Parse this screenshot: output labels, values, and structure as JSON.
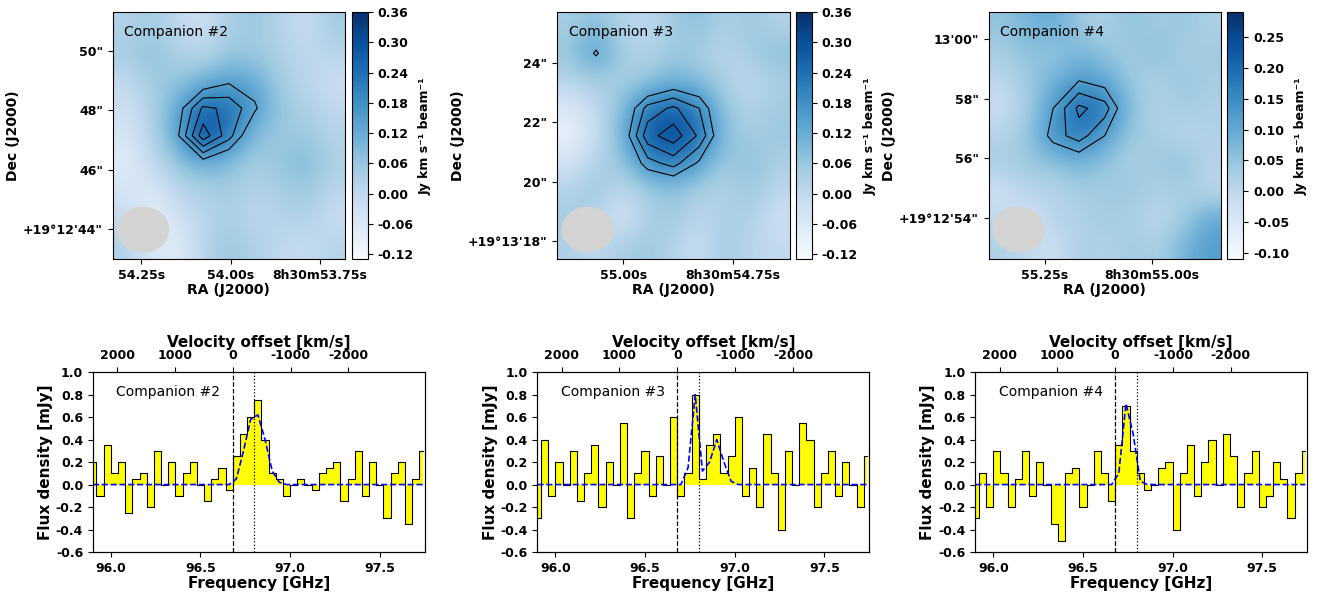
{
  "chart_data": [
    {
      "type": "heatmap",
      "label": "Companion #2",
      "x_label": "RA (J2000)",
      "y_label": "Dec (J2000)",
      "xlim": [
        54.33,
        53.68
      ],
      "ylim": [
        43.0,
        51.3
      ],
      "xticks": [
        {
          "value": 54.25,
          "label": "54.25s"
        },
        {
          "value": 54.0,
          "label": "54.00s"
        },
        {
          "value": 53.75,
          "label": "8h30m53.75s"
        }
      ],
      "yticks": [
        {
          "value": 44,
          "label": "+19°12'44\""
        },
        {
          "value": 46,
          "label": "46\""
        },
        {
          "value": 48,
          "label": "48\""
        },
        {
          "value": 50,
          "label": "50\""
        }
      ],
      "color": "Blues",
      "colorbar_label": "Jy km s⁻¹ beam⁻¹",
      "colorbar_range": [
        -0.13,
        0.36
      ],
      "colorbar_ticks": [
        -0.12,
        -0.06,
        {
          "value": 0.0,
          "label": "0.00"
        },
        0.06,
        0.12,
        0.18,
        0.24,
        {
          "value": 0.3,
          "label": "0.30"
        },
        0.36
      ],
      "contour_levels": [
        0.15,
        0.2,
        0.25,
        0.3
      ],
      "cells": [
        [
          0.02,
          0.05,
          0.0,
          -0.03,
          0.04,
          0.06,
          0.02,
          -0.02,
          0.05
        ],
        [
          0.04,
          0.08,
          0.03,
          0.01,
          0.06,
          0.05,
          0.03,
          0.0,
          0.02
        ],
        [
          0.0,
          0.05,
          0.06,
          0.1,
          0.14,
          0.12,
          0.04,
          0.01,
          -0.02
        ],
        [
          -0.03,
          0.03,
          0.12,
          0.26,
          0.24,
          0.16,
          0.06,
          0.03,
          0.0
        ],
        [
          -0.05,
          0.02,
          0.14,
          0.33,
          0.22,
          0.08,
          0.05,
          0.06,
          0.02
        ],
        [
          -0.08,
          0.0,
          0.06,
          0.12,
          0.08,
          0.04,
          0.07,
          0.09,
          0.03
        ],
        [
          -0.04,
          -0.06,
          0.02,
          0.03,
          0.05,
          0.02,
          0.04,
          0.06,
          0.01
        ],
        [
          0.0,
          -0.1,
          -0.03,
          0.01,
          0.04,
          0.0,
          0.02,
          0.03,
          -0.02
        ],
        [
          0.03,
          -0.05,
          -0.08,
          0.02,
          0.06,
          0.03,
          0.0,
          -0.01,
          0.02
        ]
      ]
    },
    {
      "type": "heatmap",
      "label": "Companion #3",
      "x_label": "RA (J2000)",
      "y_label": "Dec (J2000)",
      "xlim": [
        55.15,
        54.62
      ],
      "ylim": [
        17.4,
        25.7
      ],
      "xticks": [
        {
          "value": 55.0,
          "label": "55.00s"
        },
        {
          "value": 54.75,
          "label": "8h30m54.75s"
        }
      ],
      "yticks": [
        {
          "value": 18,
          "label": "+19°13'18\""
        },
        {
          "value": 20,
          "label": "20\""
        },
        {
          "value": 22,
          "label": "22\""
        },
        {
          "value": 24,
          "label": "24\""
        }
      ],
      "color": "Blues",
      "colorbar_label": "Jy km s⁻¹ beam⁻¹",
      "colorbar_range": [
        -0.13,
        0.36
      ],
      "colorbar_ticks": [
        -0.12,
        -0.06,
        {
          "value": 0.0,
          "label": "0.00"
        },
        0.06,
        0.12,
        0.18,
        0.24,
        {
          "value": 0.3,
          "label": "0.30"
        },
        0.36
      ],
      "contour_levels": [
        0.15,
        0.2,
        0.25,
        0.3
      ],
      "cells": [
        [
          0.04,
          0.08,
          0.02,
          0.0,
          0.05,
          0.08,
          0.03,
          0.06,
          0.02
        ],
        [
          0.06,
          0.16,
          0.05,
          0.02,
          0.06,
          0.04,
          0.01,
          0.05,
          0.08
        ],
        [
          0.02,
          0.05,
          0.03,
          0.06,
          0.1,
          0.08,
          0.03,
          0.0,
          0.04
        ],
        [
          -0.06,
          0.0,
          0.08,
          0.22,
          0.26,
          0.2,
          0.06,
          0.02,
          0.05
        ],
        [
          -0.1,
          -0.02,
          0.1,
          0.28,
          0.33,
          0.24,
          0.08,
          0.04,
          0.06
        ],
        [
          -0.04,
          0.03,
          0.06,
          0.18,
          0.22,
          0.14,
          0.05,
          0.08,
          0.03
        ],
        [
          0.02,
          0.06,
          0.0,
          0.05,
          0.07,
          0.04,
          0.02,
          0.06,
          0.01
        ],
        [
          0.05,
          0.02,
          -0.05,
          0.03,
          0.06,
          0.0,
          0.04,
          0.03,
          -0.03
        ],
        [
          0.03,
          0.0,
          0.04,
          0.06,
          0.02,
          -0.02,
          0.05,
          0.01,
          0.0
        ]
      ]
    },
    {
      "type": "heatmap",
      "label": "Companion #4",
      "x_label": "RA (J2000)",
      "y_label": "Dec (J2000)",
      "xlim": [
        55.38,
        54.84
      ],
      "ylim": [
        52.6,
        60.9
      ],
      "xticks": [
        {
          "value": 55.25,
          "label": "55.25s"
        },
        {
          "value": 55.0,
          "label": "8h30m55.00s"
        }
      ],
      "yticks": [
        {
          "value": 54,
          "label": "+19°12'54\""
        },
        {
          "value": 56,
          "label": "56\""
        },
        {
          "value": 58,
          "label": "58\""
        },
        {
          "value": 60,
          "label": "13'00\""
        }
      ],
      "color": "Blues",
      "colorbar_label": "Jy km s⁻¹ beam⁻¹",
      "colorbar_range": [
        -0.11,
        0.29
      ],
      "colorbar_ticks": [
        {
          "value": -0.1,
          "label": "-0.10"
        },
        -0.05,
        {
          "value": 0.0,
          "label": "0.00"
        },
        0.05,
        {
          "value": 0.1,
          "label": "0.10"
        },
        0.15,
        {
          "value": 0.2,
          "label": "0.20"
        },
        0.25
      ],
      "contour_levels": [
        0.12,
        0.16,
        0.2
      ],
      "cells": [
        [
          0.05,
          0.08,
          0.1,
          0.04,
          0.02,
          0.06,
          0.03,
          0.05,
          0.02
        ],
        [
          0.03,
          0.06,
          0.04,
          0.08,
          0.05,
          0.03,
          0.07,
          0.02,
          0.04
        ],
        [
          0.0,
          0.04,
          0.08,
          0.12,
          0.1,
          0.04,
          0.02,
          0.05,
          0.03
        ],
        [
          -0.02,
          0.03,
          0.12,
          0.21,
          0.18,
          0.06,
          0.01,
          0.04,
          0.02
        ],
        [
          0.01,
          0.05,
          0.14,
          0.18,
          0.12,
          0.04,
          0.03,
          0.0,
          0.02
        ],
        [
          0.03,
          0.04,
          0.06,
          0.08,
          0.05,
          0.02,
          0.04,
          0.06,
          0.01
        ],
        [
          -0.03,
          0.02,
          0.0,
          0.04,
          0.03,
          0.05,
          0.02,
          0.03,
          0.0
        ],
        [
          0.0,
          -0.05,
          0.02,
          0.01,
          0.04,
          0.02,
          0.0,
          0.03,
          0.1
        ],
        [
          0.02,
          0.0,
          -0.03,
          0.03,
          0.01,
          0.04,
          0.02,
          0.08,
          0.12
        ]
      ]
    },
    {
      "type": "step",
      "label": "Companion #2",
      "x_label": "Frequency [GHz]",
      "y_label": "Flux density [mJy]",
      "x2_label": "Velocity offset [km/s]",
      "xlim": [
        95.9,
        97.75
      ],
      "ylim": [
        -0.6,
        1.0
      ],
      "xticks": [
        96.0,
        96.5,
        97.0,
        97.5
      ],
      "yticks": [
        -0.6,
        -0.4,
        -0.2,
        0.0,
        0.2,
        0.4,
        0.6,
        0.8,
        1.0
      ],
      "x2lim": [
        2419,
        -3318
      ],
      "x2ticks": [
        2000,
        1000,
        0,
        -1000,
        -2000
      ],
      "reference_lines": [
        {
          "x": 96.68,
          "line_style": "dashed"
        },
        {
          "x": 96.8,
          "line_style": "dotted"
        }
      ],
      "x": [
        95.9,
        95.94,
        95.98,
        96.02,
        96.06,
        96.1,
        96.14,
        96.18,
        96.22,
        96.26,
        96.3,
        96.34,
        96.38,
        96.42,
        96.46,
        96.5,
        96.54,
        96.58,
        96.62,
        96.66,
        96.7,
        96.74,
        96.78,
        96.82,
        96.86,
        96.9,
        96.94,
        96.98,
        97.02,
        97.06,
        97.1,
        97.14,
        97.18,
        97.22,
        97.26,
        97.3,
        97.34,
        97.38,
        97.42,
        97.46,
        97.5,
        97.54,
        97.58,
        97.62,
        97.66,
        97.7,
        97.74
      ],
      "series": [
        {
          "type": "step",
          "color": "#ffff00",
          "values": [
            0.2,
            -0.1,
            0.35,
            0.1,
            0.2,
            -0.25,
            0.05,
            0.1,
            -0.2,
            0.3,
            0.0,
            0.2,
            -0.1,
            0.1,
            0.2,
            0.0,
            -0.15,
            0.05,
            0.15,
            -0.05,
            0.25,
            0.45,
            0.6,
            0.75,
            0.4,
            0.1,
            0.05,
            -0.1,
            0.0,
            0.05,
            0.0,
            -0.05,
            0.1,
            0.15,
            0.2,
            -0.15,
            0.05,
            0.3,
            -0.1,
            0.2,
            0.0,
            -0.3,
            0.1,
            0.2,
            -0.35,
            0.05,
            0.3
          ]
        },
        {
          "type": "line",
          "color": "#0000ff",
          "line_style": "dashed",
          "values": [
            0,
            0,
            0,
            0,
            0,
            0,
            0,
            0,
            0,
            0,
            0,
            0,
            0,
            0,
            0,
            0,
            0,
            0,
            0,
            0,
            0.05,
            0.3,
            0.58,
            0.62,
            0.4,
            0.12,
            0.02,
            0,
            0,
            0,
            0,
            0,
            0,
            0,
            0,
            0,
            0,
            0,
            0,
            0,
            0,
            0,
            0,
            0,
            0,
            0,
            0
          ]
        }
      ]
    },
    {
      "type": "step",
      "label": "Companion #3",
      "x_label": "Frequency [GHz]",
      "y_label": "Flux density [mJy]",
      "x2_label": "Velocity offset [km/s]",
      "xlim": [
        95.9,
        97.75
      ],
      "ylim": [
        -0.6,
        1.0
      ],
      "xticks": [
        96.0,
        96.5,
        97.0,
        97.5
      ],
      "yticks": [
        -0.6,
        -0.4,
        -0.2,
        0.0,
        0.2,
        0.4,
        0.6,
        0.8,
        1.0
      ],
      "x2lim": [
        2419,
        -3318
      ],
      "x2ticks": [
        2000,
        1000,
        0,
        -1000,
        -2000
      ],
      "reference_lines": [
        {
          "x": 96.68,
          "line_style": "dashed"
        },
        {
          "x": 96.8,
          "line_style": "dotted"
        }
      ],
      "x": [
        95.9,
        95.94,
        95.98,
        96.02,
        96.06,
        96.1,
        96.14,
        96.18,
        96.22,
        96.26,
        96.3,
        96.34,
        96.38,
        96.42,
        96.46,
        96.5,
        96.54,
        96.58,
        96.62,
        96.66,
        96.7,
        96.74,
        96.78,
        96.82,
        96.86,
        96.9,
        96.94,
        96.98,
        97.02,
        97.06,
        97.1,
        97.14,
        97.18,
        97.22,
        97.26,
        97.3,
        97.34,
        97.38,
        97.42,
        97.46,
        97.5,
        97.54,
        97.58,
        97.62,
        97.66,
        97.7,
        97.74
      ],
      "series": [
        {
          "type": "step",
          "color": "#ffff00",
          "values": [
            -0.3,
            0.4,
            -0.1,
            0.2,
            0.0,
            0.3,
            -0.15,
            0.1,
            0.35,
            -0.2,
            0.2,
            0.0,
            0.55,
            -0.3,
            0.1,
            0.3,
            -0.1,
            0.25,
            0.0,
            0.6,
            -0.1,
            0.1,
            0.8,
            0.05,
            0.35,
            0.45,
            0.1,
            0.25,
            0.6,
            -0.1,
            0.15,
            -0.2,
            0.45,
            0.1,
            -0.4,
            0.3,
            0.0,
            0.55,
            0.4,
            -0.2,
            0.1,
            0.3,
            -0.1,
            0.2,
            0.0,
            -0.2,
            0.25
          ]
        },
        {
          "type": "line",
          "color": "#0000ff",
          "line_style": "dashed",
          "values": [
            0,
            0,
            0,
            0,
            0,
            0,
            0,
            0,
            0,
            0,
            0,
            0,
            0,
            0,
            0,
            0,
            0,
            0,
            0,
            0,
            0,
            0.15,
            0.8,
            0.12,
            0.2,
            0.4,
            0.2,
            0.03,
            0,
            0,
            0,
            0,
            0,
            0,
            0,
            0,
            0,
            0,
            0,
            0,
            0,
            0,
            0,
            0,
            0,
            0,
            0
          ]
        }
      ]
    },
    {
      "type": "step",
      "label": "Companion #4",
      "x_label": "Frequency [GHz]",
      "y_label": "Flux density [mJy]",
      "x2_label": "Velocity offset [km/s]",
      "xlim": [
        95.9,
        97.75
      ],
      "ylim": [
        -0.6,
        1.0
      ],
      "xticks": [
        96.0,
        96.5,
        97.0,
        97.5
      ],
      "yticks": [
        -0.6,
        -0.4,
        -0.2,
        0.0,
        0.2,
        0.4,
        0.6,
        0.8,
        1.0
      ],
      "x2lim": [
        2419,
        -3318
      ],
      "x2ticks": [
        2000,
        1000,
        0,
        -1000,
        -2000
      ],
      "reference_lines": [
        {
          "x": 96.68,
          "line_style": "dashed"
        },
        {
          "x": 96.8,
          "line_style": "dotted"
        }
      ],
      "x": [
        95.9,
        95.94,
        95.98,
        96.02,
        96.06,
        96.1,
        96.14,
        96.18,
        96.22,
        96.26,
        96.3,
        96.34,
        96.38,
        96.42,
        96.46,
        96.5,
        96.54,
        96.58,
        96.62,
        96.66,
        96.7,
        96.74,
        96.78,
        96.82,
        96.86,
        96.9,
        96.94,
        96.98,
        97.02,
        97.06,
        97.1,
        97.14,
        97.18,
        97.22,
        97.26,
        97.3,
        97.34,
        97.38,
        97.42,
        97.46,
        97.5,
        97.54,
        97.58,
        97.62,
        97.66,
        97.7,
        97.74
      ],
      "series": [
        {
          "type": "step",
          "color": "#ffff00",
          "values": [
            -0.3,
            0.1,
            -0.2,
            0.3,
            0.1,
            -0.2,
            0.05,
            0.3,
            -0.1,
            0.2,
            0.0,
            -0.35,
            -0.5,
            0.1,
            0.15,
            -0.2,
            0.0,
            0.3,
            0.1,
            -0.15,
            0.35,
            0.7,
            0.3,
            0.1,
            -0.05,
            0.0,
            0.15,
            0.2,
            -0.4,
            0.1,
            0.35,
            -0.1,
            0.2,
            0.4,
            0.0,
            0.45,
            0.25,
            -0.2,
            0.1,
            0.3,
            -0.2,
            -0.1,
            0.2,
            0.05,
            -0.3,
            0.1,
            0.3
          ]
        },
        {
          "type": "line",
          "color": "#0000ff",
          "line_style": "dashed",
          "values": [
            0,
            0,
            0,
            0,
            0,
            0,
            0,
            0,
            0,
            0,
            0,
            0,
            0,
            0,
            0,
            0,
            0,
            0,
            0,
            0,
            0.1,
            0.72,
            0.45,
            0.03,
            0,
            0,
            0,
            0,
            0,
            0,
            0,
            0,
            0,
            0,
            0,
            0,
            0,
            0,
            0,
            0,
            0,
            0,
            0,
            0,
            0,
            0,
            0
          ]
        }
      ]
    }
  ]
}
